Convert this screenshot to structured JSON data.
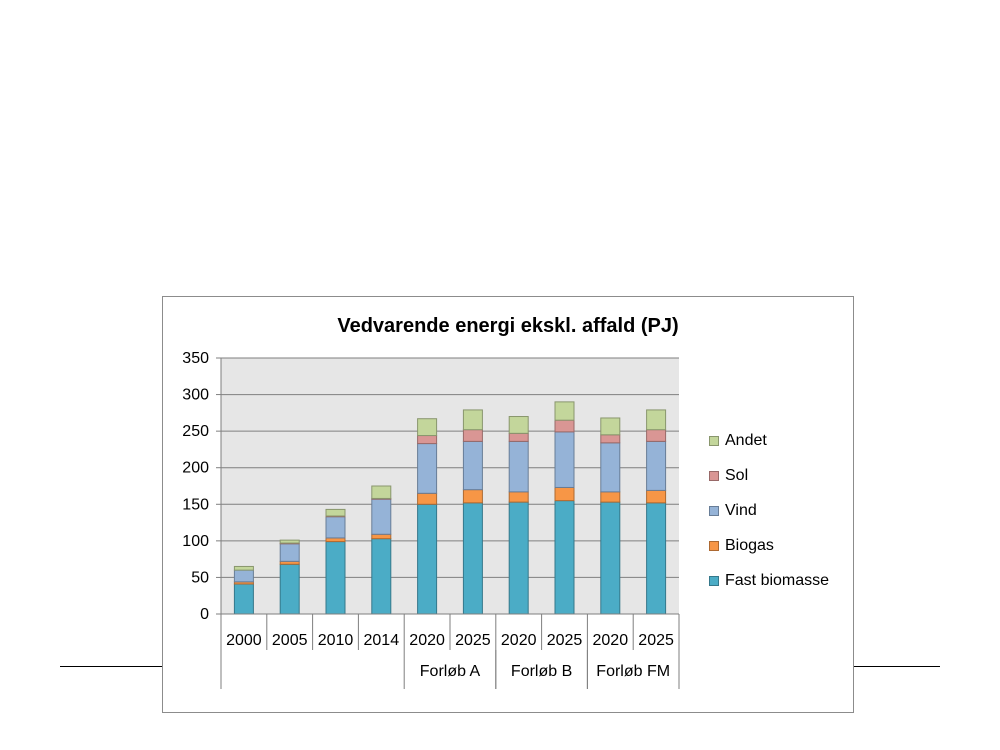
{
  "chart_data": {
    "type": "bar",
    "stacked": true,
    "title": "Vedvarende energi ekskl. affald (PJ)",
    "xlabel": "",
    "ylabel": "",
    "ylim": [
      0,
      350
    ],
    "yticks": [
      0,
      50,
      100,
      150,
      200,
      250,
      300,
      350
    ],
    "grid": true,
    "legend_position": "right",
    "categories": [
      "2000",
      "2005",
      "2010",
      "2014",
      "2020",
      "2025",
      "2020",
      "2025",
      "2020",
      "2025"
    ],
    "groups": [
      {
        "label": "",
        "span": [
          0,
          3
        ]
      },
      {
        "label": "Forløb A",
        "span": [
          4,
          5
        ]
      },
      {
        "label": "Forløb B",
        "span": [
          6,
          7
        ]
      },
      {
        "label": "Forløb FM",
        "span": [
          8,
          9
        ]
      }
    ],
    "series": [
      {
        "name": "Fast biomasse",
        "color": "#4bacc6",
        "values": [
          41,
          68,
          99,
          103,
          150,
          152,
          153,
          155,
          153,
          152
        ]
      },
      {
        "name": "Biogas",
        "color": "#f79646",
        "values": [
          3,
          4,
          5,
          6,
          15,
          18,
          14,
          18,
          14,
          17
        ]
      },
      {
        "name": "Vind",
        "color": "#95b3d7",
        "values": [
          16,
          24,
          29,
          48,
          68,
          66,
          69,
          76,
          67,
          67
        ]
      },
      {
        "name": "Sol",
        "color": "#d99694",
        "values": [
          0,
          1,
          1,
          1,
          11,
          16,
          11,
          16,
          11,
          16
        ]
      },
      {
        "name": "Andet",
        "color": "#c3d69b",
        "values": [
          5,
          4,
          9,
          17,
          23,
          27,
          23,
          25,
          23,
          27
        ]
      }
    ]
  }
}
